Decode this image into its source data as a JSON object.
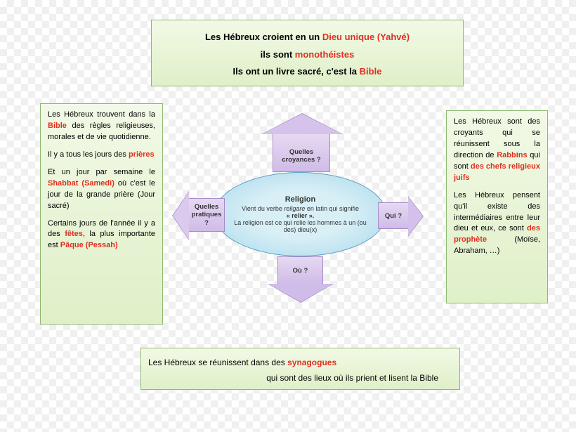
{
  "colors": {
    "box_border": "#8fb96f",
    "box_bg_top": "#f2f9e6",
    "box_bg_bottom": "#dff0c8",
    "arrow_border": "#a78cc9",
    "arrow_bg_top": "#e6d9f2",
    "arrow_bg_bottom": "#d0bce8",
    "oval_bg_center": "#d8eff6",
    "oval_bg_edge": "#a8d8ec",
    "oval_border": "#5a9fc0",
    "highlight": "#e03020",
    "text": "#333333"
  },
  "top": {
    "l1a": "Les Hébreux croient en un ",
    "l1b": "Dieu unique (Yahvé)",
    "l2a": "ils sont ",
    "l2b": "monothéistes",
    "l3a": "Ils ont un livre sacré, c'est la ",
    "l3b": "Bible"
  },
  "left": {
    "p1a": "Les Hébreux trouvent dans la ",
    "p1b": "Bible",
    "p1c": " des règles religieuses, morales et de vie quotidienne.",
    "p2a": "Il y a tous les jours des ",
    "p2b": "prières",
    "p3a": "Et un jour par semaine le ",
    "p3b": "Shabbat (Samedi)",
    "p3c": " où c'est le jour de la grande prière (Jour sacré)",
    "p4a": "Certains jours de l'année il y a des ",
    "p4b": "fêtes",
    "p4c": ", la plus importante est ",
    "p4d": "Pâque (Pessah)"
  },
  "right": {
    "p1a": "Les Hébreux sont des croyants qui se réunissent sous la direction de ",
    "p1b": "Rabbins",
    "p1c": " qui sont ",
    "p1d": "des chefs religieux juifs",
    "p2a": "Les Hébreux pensent qu'il existe des intermédiaires entre leur dieu et eux, ce sont ",
    "p2b": "des prophète",
    "p2c": " (Moïse, Abraham, …)"
  },
  "bottom": {
    "l1a": "Les Hébreux se réunissent dans des ",
    "l1b": "synagogues",
    "l2": "qui sont des lieux où ils prient et lisent la Bible"
  },
  "center": {
    "title": "Religion",
    "l1a": "Vient du verbe ",
    "l1b": "religare",
    "l1c": " en latin qui signifie",
    "l2": "« relier ».",
    "l3": "La religion est ce qui relie les hommes à un (ou des) dieu(x)"
  },
  "arrows": {
    "up": "Quelles croyances ?",
    "down": "Où ?",
    "left": "Quelles pratiques ?",
    "right": "Qui ?"
  }
}
